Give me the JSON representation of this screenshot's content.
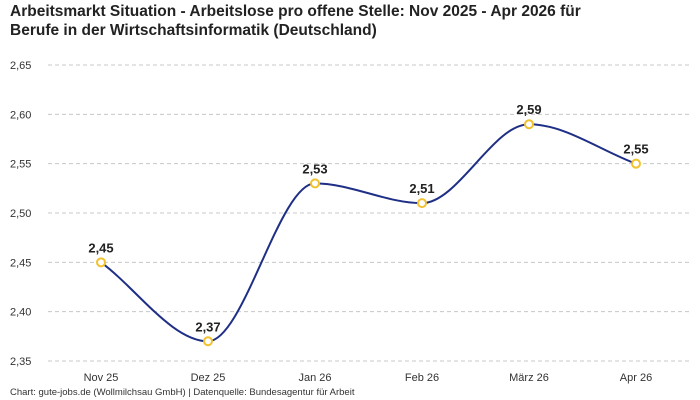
{
  "title_line1": "Arbeitsmarkt Situation - Arbeitslose pro offene Stelle: Nov 2025 - Apr 2026 für",
  "title_line2": "Berufe in der Wirtschaftsinformatik (Deutschland)",
  "footer": "Chart: gute-jobs.de (Wollmilchsau GmbH) | Datenquelle: Bundesagentur für Arbeit",
  "chart_data": {
    "type": "line",
    "title": "Arbeitsmarkt Situation - Arbeitslose pro offene Stelle: Nov 2025 - Apr 2026 für Berufe in der Wirtschaftsinformatik (Deutschland)",
    "categories": [
      "Nov 25",
      "Dez 25",
      "Jan 26",
      "Feb 26",
      "März 26",
      "Apr 26"
    ],
    "values": [
      2.45,
      2.37,
      2.53,
      2.51,
      2.59,
      2.55
    ],
    "data_labels": [
      "2,45",
      "2,37",
      "2,53",
      "2,51",
      "2,59",
      "2,55"
    ],
    "ylim": [
      2.35,
      2.65
    ],
    "yticks": [
      2.35,
      2.4,
      2.45,
      2.5,
      2.55,
      2.6,
      2.65
    ],
    "ytick_labels": [
      "2,35",
      "2,40",
      "2,45",
      "2,50",
      "2,55",
      "2,60",
      "2,65"
    ],
    "xlabel": "",
    "ylabel": "",
    "grid": true,
    "smooth": true,
    "line_color": "#1f2f86",
    "marker_color": "#f2c12e"
  }
}
